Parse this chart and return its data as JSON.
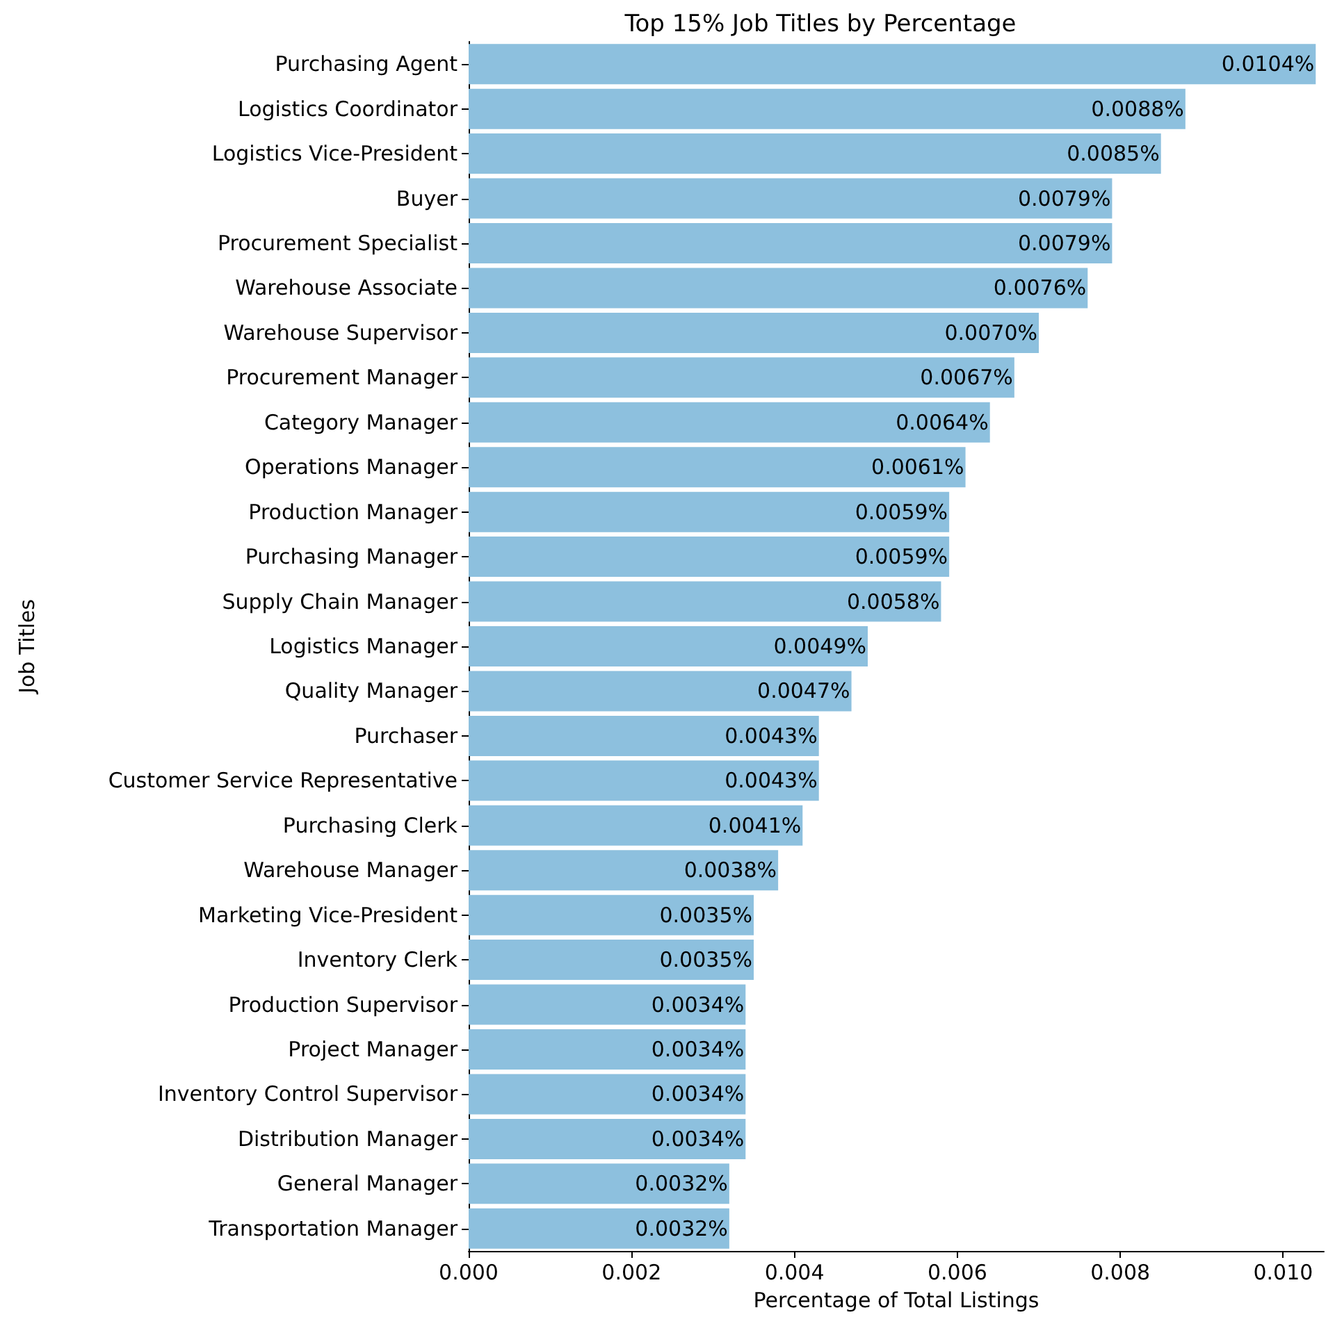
{
  "chart_data": {
    "type": "bar",
    "orientation": "horizontal",
    "title": "Top 15% Job Titles by Percentage",
    "xlabel": "Percentage of Total Listings",
    "ylabel": "Job Titles",
    "categories": [
      "Purchasing Agent",
      "Logistics Coordinator",
      "Logistics Vice-President",
      "Buyer",
      "Procurement Specialist",
      "Warehouse Associate",
      "Warehouse Supervisor",
      "Procurement Manager",
      "Category Manager",
      "Operations Manager",
      "Production Manager",
      "Purchasing Manager",
      "Supply Chain Manager",
      "Logistics Manager",
      "Quality Manager",
      "Purchaser",
      "Customer Service Representative",
      "Purchasing Clerk",
      "Warehouse Manager",
      "Marketing Vice-President",
      "Inventory Clerk",
      "Production Supervisor",
      "Project Manager",
      "Inventory Control Supervisor",
      "Distribution Manager",
      "General Manager",
      "Transportation Manager"
    ],
    "values": [
      0.0104,
      0.0088,
      0.0085,
      0.0079,
      0.0079,
      0.0076,
      0.007,
      0.0067,
      0.0064,
      0.0061,
      0.0059,
      0.0059,
      0.0058,
      0.0049,
      0.0047,
      0.0043,
      0.0043,
      0.0041,
      0.0038,
      0.0035,
      0.0035,
      0.0034,
      0.0034,
      0.0034,
      0.0034,
      0.0032,
      0.0032
    ],
    "value_labels": [
      "0.0104%",
      "0.0088%",
      "0.0085%",
      "0.0079%",
      "0.0079%",
      "0.0076%",
      "0.0070%",
      "0.0067%",
      "0.0064%",
      "0.0061%",
      "0.0059%",
      "0.0059%",
      "0.0058%",
      "0.0049%",
      "0.0047%",
      "0.0043%",
      "0.0043%",
      "0.0041%",
      "0.0038%",
      "0.0035%",
      "0.0035%",
      "0.0034%",
      "0.0034%",
      "0.0034%",
      "0.0034%",
      "0.0032%",
      "0.0032%"
    ],
    "color": "#8dc0de",
    "xlim": [
      0,
      0.0105
    ],
    "xticks": [
      {
        "value": 0,
        "label": "0.000"
      },
      {
        "value": 0.002,
        "label": "0.002"
      },
      {
        "value": 0.004,
        "label": "0.004"
      },
      {
        "value": 0.006,
        "label": "0.006"
      },
      {
        "value": 0.008,
        "label": "0.008"
      },
      {
        "value": 0.01,
        "label": "0.010"
      }
    ],
    "grid": false
  }
}
